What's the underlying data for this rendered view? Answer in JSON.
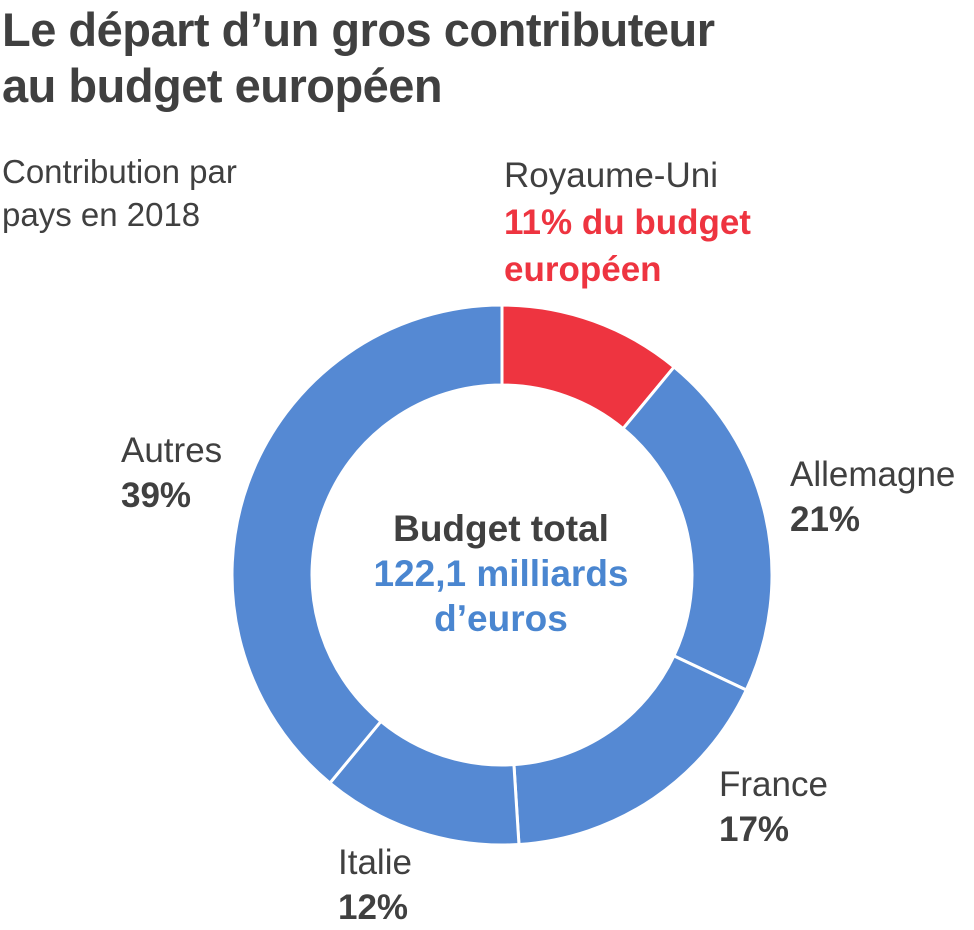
{
  "title": {
    "line1": "Le départ d’un gros contributeur",
    "line2": "au budget européen"
  },
  "subtitle": {
    "line1": "Contribution par",
    "line2": "pays en 2018"
  },
  "center": {
    "title": "Budget total",
    "value_line1": "122,1 milliards",
    "value_line2": "d’euros"
  },
  "highlight": {
    "name": "Royaume-Uni",
    "line1": "11% du budget",
    "line2": "européen"
  },
  "labels": {
    "allemagne": {
      "name": "Allemagne",
      "pct": "21%"
    },
    "france": {
      "name": "France",
      "pct": "17%"
    },
    "italie": {
      "name": "Italie",
      "pct": "12%"
    },
    "autres": {
      "name": "Autres",
      "pct": "39%"
    }
  },
  "colors": {
    "highlight": "#ee3440",
    "segment": "#5589d3",
    "separator": "#ffffff",
    "text": "#404040"
  },
  "chart_data": {
    "type": "pie",
    "variant": "donut",
    "categories": [
      "Royaume-Uni",
      "Allemagne",
      "France",
      "Italie",
      "Autres"
    ],
    "values": [
      11,
      21,
      17,
      12,
      39
    ],
    "unit": "%",
    "total": "122,1 milliards d’euros",
    "highlighted": "Royaume-Uni"
  }
}
